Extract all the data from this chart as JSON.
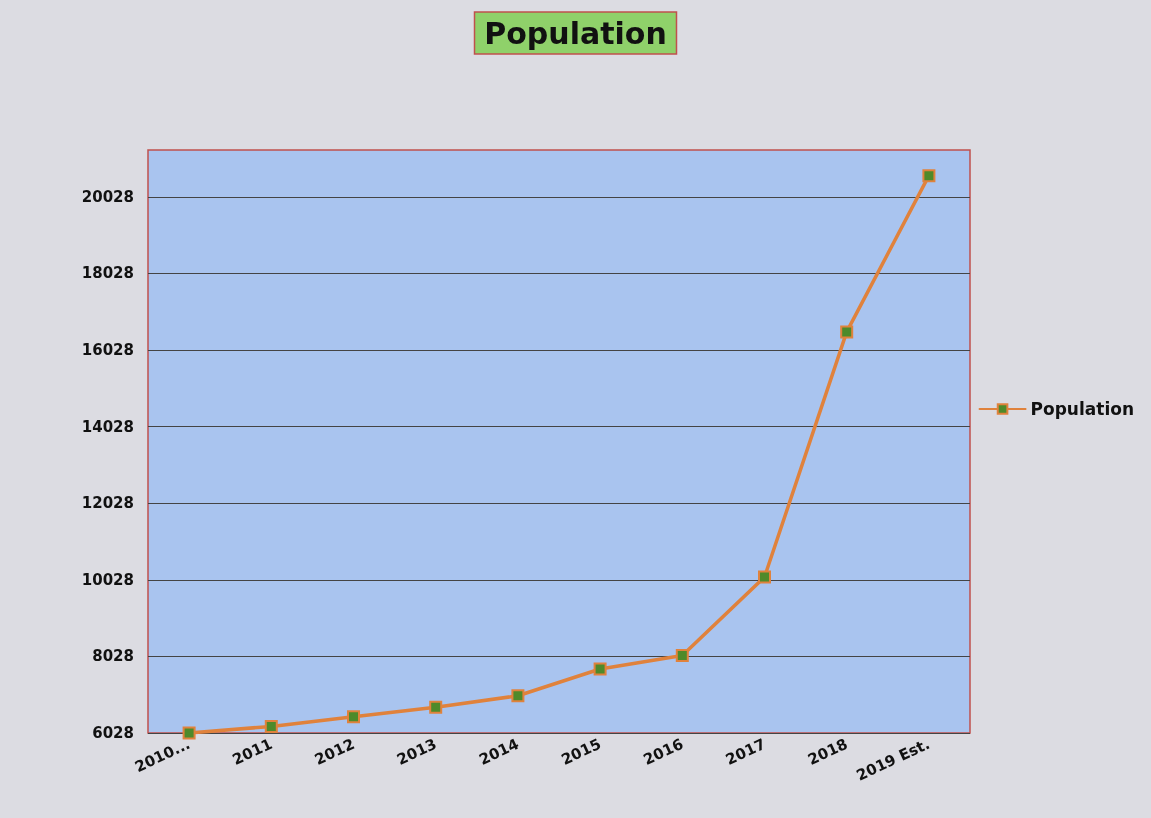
{
  "chart_data": {
    "type": "line",
    "title": "Population",
    "categories": [
      "2010...",
      "2011",
      "2012",
      "2013",
      "2014",
      "2015",
      "2016",
      "2017",
      "2018",
      "2019 Est."
    ],
    "series": [
      {
        "name": "Population",
        "color": "#e0823c",
        "values": [
          6030,
          6200,
          6450,
          6700,
          7000,
          7700,
          8050,
          10100,
          16500,
          20580
        ]
      }
    ],
    "ylim": [
      6028,
      21250
    ],
    "yticks": [
      6028,
      8028,
      10028,
      12028,
      14028,
      16028,
      18028,
      20028
    ],
    "grid": "y",
    "legend": "right",
    "marker": "square",
    "line_style": "solid"
  }
}
